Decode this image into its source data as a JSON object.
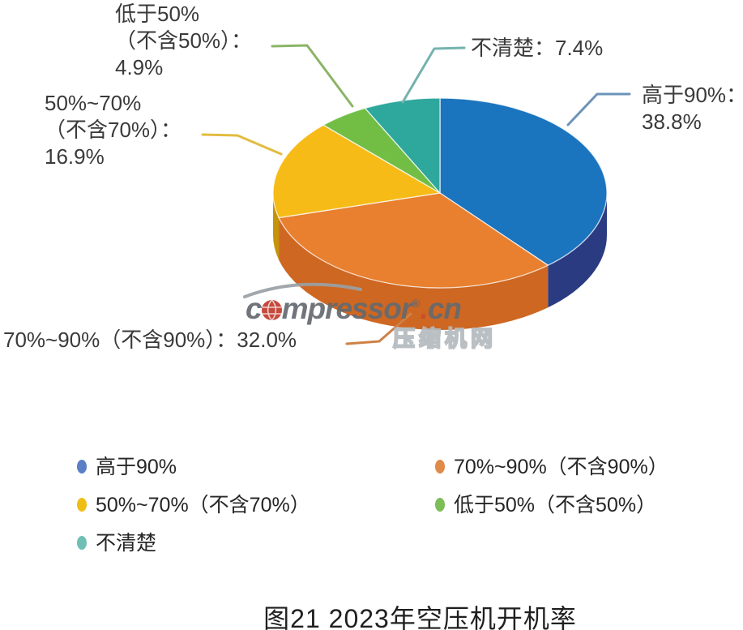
{
  "page": {
    "background": "#ffffff"
  },
  "watermark": {
    "part1": "c",
    "part2": "mpressor",
    "reg": "®",
    "dot": ".",
    "part3": "cn",
    "cn_name": "压缩机网",
    "text_color": "#646a70",
    "globe_color": "#c23a2c"
  },
  "chart_data": {
    "type": "pie",
    "effect": "3d",
    "title": "图21 2023年空压机开机率",
    "unit": "%",
    "legend_position": "bottom",
    "series": [
      {
        "name": "高于90%",
        "value": 38.8,
        "label_lines": [
          "高于90%：",
          "38.8%"
        ],
        "color": "#1B74BE",
        "side_color": "#2A3B82",
        "legend_color": "#5B7FC4",
        "leader_color": "#6C93B8"
      },
      {
        "name": "70%~90%（不含90%）",
        "value": 32.0,
        "label_lines": [
          "70%~90%（不含90%）：32.0%"
        ],
        "color": "#E8802F",
        "side_color": "#CE6722",
        "legend_color": "#E08A4A",
        "leader_color": "#CE8146"
      },
      {
        "name": "50%~70%（不含70%）",
        "value": 16.9,
        "label_lines": [
          "50%~70%",
          "（不含70%）：",
          "16.9%"
        ],
        "color": "#F6BB17",
        "side_color": "#C5940A",
        "legend_color": "#EFBE13",
        "leader_color": "#E2BC3F"
      },
      {
        "name": "低于50%（不含50%）",
        "value": 4.9,
        "label_lines": [
          "低于50%",
          "（不含50%）：",
          "4.9%"
        ],
        "color": "#72BE45",
        "side_color": "#4E9630",
        "legend_color": "#7CBD57",
        "leader_color": "#8CB468"
      },
      {
        "name": "不清楚",
        "value": 7.4,
        "label_lines": [
          "不清楚：7.4%"
        ],
        "color": "#2EA79D",
        "side_color": "#1F837A",
        "legend_color": "#6FBFB4",
        "leader_color": "#74B3AE"
      }
    ]
  }
}
